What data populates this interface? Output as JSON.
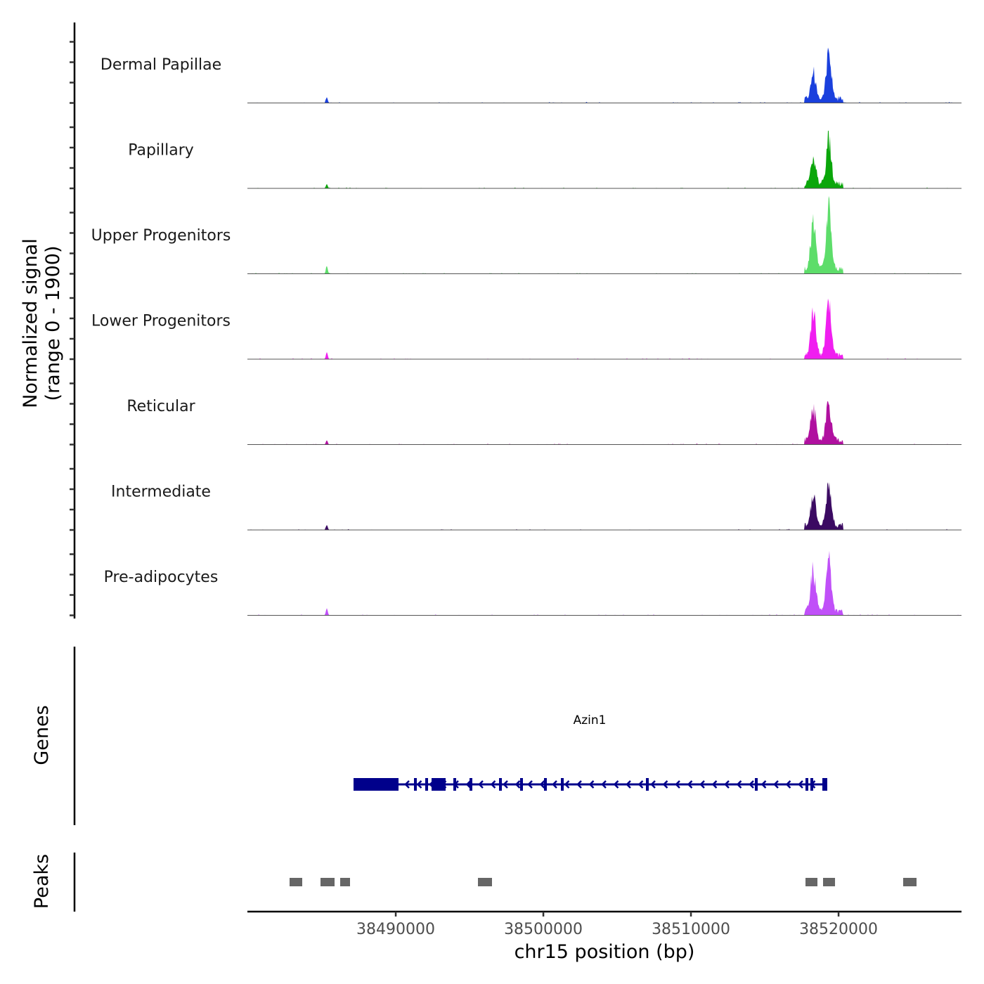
{
  "chart_data": {
    "type": "area",
    "title": "",
    "xlabel": "chr15 position (bp)",
    "ylabel": "Normalized signal",
    "ylabel_sub": "(range 0 - 1900)",
    "ylim": [
      0,
      1900
    ],
    "xlim": [
      38479950,
      38528330
    ],
    "xticks": [
      38490000,
      38500000,
      38510000,
      38520000
    ],
    "xtick_labels": [
      "38490000",
      "38500000",
      "38510000",
      "38520000"
    ],
    "tracks": [
      {
        "name": "Dermal Papillae",
        "color": "#1a40dd",
        "peaks": [
          [
            38485330,
            130
          ],
          [
            38518283,
            730
          ],
          [
            38519333,
            1235
          ]
        ]
      },
      {
        "name": "Papillary",
        "color": "#0aa60a",
        "peaks": [
          [
            38485330,
            95
          ],
          [
            38518283,
            855
          ],
          [
            38519333,
            1315
          ]
        ]
      },
      {
        "name": "Upper Progenitors",
        "color": "#5ddd6a",
        "peaks": [
          [
            38485330,
            175
          ],
          [
            38518283,
            1330
          ],
          [
            38519333,
            1710
          ]
        ]
      },
      {
        "name": "Lower Progenitors",
        "color": "#f01ef0",
        "peaks": [
          [
            38485330,
            160
          ],
          [
            38518283,
            1200
          ],
          [
            38519333,
            1490
          ]
        ]
      },
      {
        "name": "Reticular",
        "color": "#b0109f",
        "peaks": [
          [
            38485330,
            95
          ],
          [
            38518283,
            965
          ],
          [
            38519333,
            1125
          ]
        ]
      },
      {
        "name": "Intermediate",
        "color": "#3b0a62",
        "peaks": [
          [
            38485330,
            110
          ],
          [
            38518283,
            810
          ],
          [
            38519333,
            1110
          ]
        ]
      },
      {
        "name": "Pre-adipocytes",
        "color": "#c050f8",
        "peaks": [
          [
            38485330,
            160
          ],
          [
            38518283,
            1190
          ],
          [
            38519333,
            1395
          ]
        ]
      }
    ],
    "genes_label": "Genes",
    "gene": {
      "name": "Azin1",
      "strand": "-",
      "color": "#00008b",
      "start": 38487140,
      "end": 38519140,
      "thick_exons": [
        [
          38487140,
          38490188
        ],
        [
          38492426,
          38493379
        ]
      ],
      "exons": [
        38491331,
        38492093,
        38493998,
        38495093,
        38497093,
        38498521,
        38500140,
        38501283,
        38507045,
        38514426,
        38517855,
        38518188,
        38518998,
        38519140
      ]
    },
    "peaks_label": "Peaks",
    "peaks_color": "#666666",
    "peak_regions": [
      [
        38482807,
        38483664
      ],
      [
        38484902,
        38485855
      ],
      [
        38486236,
        38486902
      ],
      [
        38495569,
        38496521
      ],
      [
        38517760,
        38518569
      ],
      [
        38518950,
        38519760
      ],
      [
        38524378,
        38525283
      ]
    ]
  }
}
